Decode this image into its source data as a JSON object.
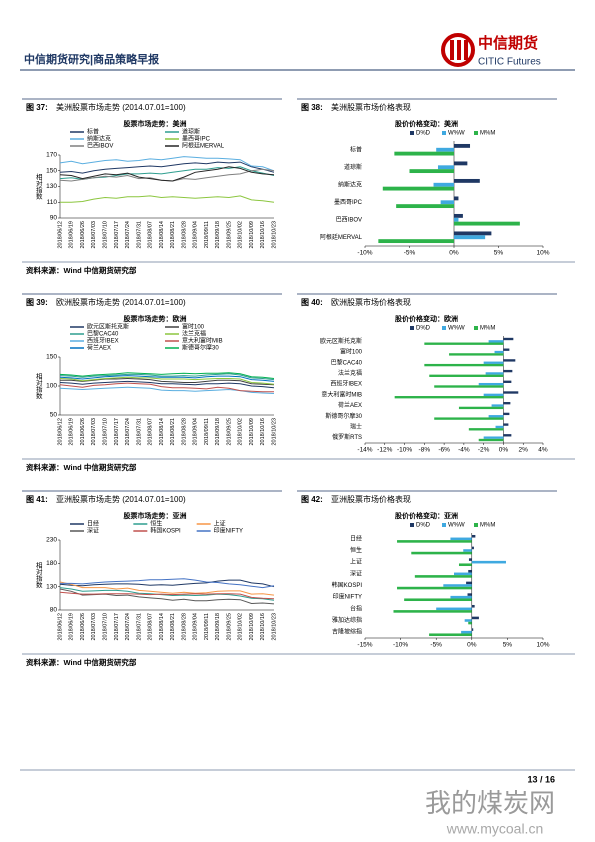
{
  "header": {
    "title": "中信期货研究|商品策略早报",
    "logo_cn": "中信期货",
    "logo_en": "CITIC Futures"
  },
  "figures": [
    {
      "label": "图 37:",
      "caption": "美洲股票市场走势 (2014.07.01=100)"
    },
    {
      "label": "图 38:",
      "caption": "美洲股票市场价格表现"
    },
    {
      "label": "图 39:",
      "caption": "欧洲股票市场走势 (2014.07.01=100)"
    },
    {
      "label": "图 40:",
      "caption": "欧洲股票市场价格表现"
    },
    {
      "label": "图 41:",
      "caption": "亚洲股票市场走势 (2014.07.01=100)"
    },
    {
      "label": "图 42:",
      "caption": "亚洲股票市场价格表现"
    }
  ],
  "sources": [
    "资料来源：Wind 中信期货研究部",
    "资料来源：Wind 中信期货研究部",
    "资料来源：Wind 中信期货研究部"
  ],
  "chart_data": [
    {
      "type": "line",
      "title": "股票市场走势：美洲",
      "ylabel": "相对指数",
      "categories": [
        "2018/06/12",
        "2018/06/19",
        "2018/06/26",
        "2018/07/03",
        "2018/07/10",
        "2018/07/17",
        "2018/07/24",
        "2018/07/31",
        "2018/08/07",
        "2018/08/14",
        "2018/08/21",
        "2018/08/28",
        "2018/09/04",
        "2018/09/11",
        "2018/09/18",
        "2018/09/25",
        "2018/10/02",
        "2018/10/09",
        "2018/10/16",
        "2018/10/23"
      ],
      "ylim": [
        90,
        170
      ],
      "yticks": [
        90,
        110,
        130,
        150,
        170
      ],
      "series": [
        {
          "name": "标普",
          "color": "#1f3864",
          "values": [
            148,
            149,
            147,
            150,
            152,
            153,
            154,
            155,
            156,
            155,
            157,
            159,
            160,
            159,
            161,
            160,
            161,
            155,
            152,
            148
          ]
        },
        {
          "name": "道琼斯",
          "color": "#2e9e8f",
          "values": [
            140,
            141,
            139,
            141,
            142,
            144,
            146,
            146,
            147,
            146,
            148,
            150,
            152,
            152,
            154,
            153,
            155,
            150,
            147,
            144
          ]
        },
        {
          "name": "纳斯达克",
          "color": "#5aaee0",
          "values": [
            160,
            162,
            159,
            161,
            163,
            164,
            162,
            163,
            165,
            164,
            166,
            168,
            167,
            166,
            166,
            165,
            164,
            156,
            155,
            150
          ]
        },
        {
          "name": "墨西哥IPC",
          "color": "#8cc63f",
          "values": [
            110,
            110,
            111,
            114,
            116,
            115,
            117,
            117,
            118,
            116,
            117,
            116,
            115,
            116,
            117,
            116,
            118,
            113,
            112,
            110
          ]
        },
        {
          "name": "巴西IBOV",
          "color": "#7f7f7f",
          "values": [
            138,
            137,
            139,
            141,
            143,
            142,
            144,
            140,
            141,
            138,
            137,
            140,
            139,
            141,
            143,
            145,
            146,
            150,
            152,
            150
          ]
        },
        {
          "name": "阿根廷MERVAL",
          "color": "#262626",
          "values": [
            145,
            144,
            140,
            143,
            146,
            145,
            147,
            142,
            140,
            138,
            137,
            142,
            148,
            150,
            152,
            155,
            153,
            148,
            146,
            145
          ]
        }
      ]
    },
    {
      "type": "hbar",
      "title": "股价价格变动：美洲",
      "categories": [
        "标普",
        "道琼斯",
        "纳斯达克",
        "墨西哥IPC",
        "巴西IBOV",
        "阿根廷MERVAL"
      ],
      "xlim": [
        -10,
        10
      ],
      "xticks": [
        {
          "value": -10,
          "label": "-10%"
        },
        {
          "value": -5,
          "label": "-5%"
        },
        {
          "value": 0,
          "label": "0%"
        },
        {
          "value": 5,
          "label": "5%"
        },
        {
          "value": 10,
          "label": "10%"
        }
      ],
      "series": [
        {
          "name": "D%D",
          "color": "#1f3864",
          "values": [
            1.8,
            1.5,
            2.9,
            0.5,
            1.0,
            4.2
          ]
        },
        {
          "name": "W%W",
          "color": "#3fa9e0",
          "values": [
            -2.0,
            -1.8,
            -2.3,
            -1.5,
            0.5,
            3.5
          ]
        },
        {
          "name": "M%M",
          "color": "#2db34a",
          "values": [
            -6.7,
            -5.0,
            -8.0,
            -6.5,
            7.4,
            -8.5
          ]
        }
      ]
    },
    {
      "type": "line",
      "title": "股票市场走势：欧洲",
      "ylabel": "相对指数",
      "categories": [
        "2018/06/12",
        "2018/06/19",
        "2018/06/26",
        "2018/07/03",
        "2018/07/10",
        "2018/07/17",
        "2018/07/24",
        "2018/07/31",
        "2018/08/07",
        "2018/08/14",
        "2018/08/21",
        "2018/08/28",
        "2018/09/04",
        "2018/09/11",
        "2018/09/18",
        "2018/09/25",
        "2018/10/02",
        "2018/10/09",
        "2018/10/16",
        "2018/10/23"
      ],
      "ylim": [
        50,
        150
      ],
      "yticks": [
        50,
        100,
        150
      ],
      "series": [
        {
          "name": "欧元区斯托克斯",
          "color": "#1f3864",
          "values": [
            106,
            105,
            103,
            105,
            106,
            107,
            108,
            107,
            106,
            104,
            104,
            103,
            102,
            104,
            104,
            105,
            104,
            100,
            99,
            97
          ]
        },
        {
          "name": "富时100",
          "color": "#404040",
          "values": [
            110,
            110,
            108,
            110,
            112,
            112,
            113,
            112,
            111,
            108,
            107,
            106,
            106,
            108,
            110,
            110,
            109,
            104,
            103,
            102
          ]
        },
        {
          "name": "巴黎CAC40",
          "color": "#2e9e8f",
          "values": [
            118,
            117,
            115,
            117,
            118,
            119,
            120,
            120,
            119,
            117,
            117,
            118,
            117,
            119,
            120,
            121,
            119,
            114,
            113,
            111
          ]
        },
        {
          "name": "法兰克福",
          "color": "#8cc63f",
          "values": [
            113,
            112,
            109,
            111,
            113,
            114,
            115,
            114,
            114,
            112,
            112,
            112,
            111,
            112,
            113,
            113,
            112,
            106,
            105,
            103
          ]
        },
        {
          "name": "西班牙IBEX",
          "color": "#5aaee0",
          "values": [
            96,
            95,
            94,
            95,
            96,
            97,
            98,
            97,
            96,
            93,
            92,
            92,
            91,
            92,
            93,
            94,
            92,
            89,
            88,
            87
          ]
        },
        {
          "name": "意大利富时MIB",
          "color": "#c0504d",
          "values": [
            102,
            100,
            98,
            101,
            102,
            104,
            105,
            104,
            103,
            99,
            97,
            97,
            96,
            95,
            98,
            96,
            92,
            91,
            90,
            90
          ]
        },
        {
          "name": "荷兰AEX",
          "color": "#0070c0",
          "values": [
            115,
            114,
            112,
            114,
            116,
            117,
            118,
            117,
            116,
            115,
            115,
            115,
            114,
            116,
            117,
            117,
            116,
            111,
            110,
            108
          ]
        },
        {
          "name": "斯德哥尔摩30",
          "color": "#00b050",
          "values": [
            120,
            119,
            117,
            119,
            120,
            121,
            123,
            122,
            121,
            120,
            121,
            122,
            121,
            122,
            122,
            123,
            121,
            116,
            115,
            113
          ]
        }
      ]
    },
    {
      "type": "hbar",
      "title": "股价价格变动：欧洲",
      "categories": [
        "欧元区斯托克斯",
        "富时100",
        "巴黎CAC40",
        "法兰克福",
        "西班牙IBEX",
        "意大利富时MIB",
        "荷兰AEX",
        "斯德哥尔摩30",
        "瑞士",
        "俄罗斯RTS"
      ],
      "xlim": [
        -14,
        4
      ],
      "xticks": [
        {
          "value": -14,
          "label": "-14%"
        },
        {
          "value": -12,
          "label": "-12%"
        },
        {
          "value": -10,
          "label": "-10%"
        },
        {
          "value": -8,
          "label": "-8%"
        },
        {
          "value": -6,
          "label": "-6%"
        },
        {
          "value": -4,
          "label": "-4%"
        },
        {
          "value": -2,
          "label": "-2%"
        },
        {
          "value": 0,
          "label": "0%"
        },
        {
          "value": 2,
          "label": "2%"
        },
        {
          "value": 4,
          "label": "4%"
        }
      ],
      "series": [
        {
          "name": "D%D",
          "color": "#1f3864",
          "values": [
            1.0,
            0.6,
            1.2,
            0.9,
            0.8,
            1.5,
            0.7,
            0.6,
            0.5,
            0.8
          ]
        },
        {
          "name": "W%W",
          "color": "#3fa9e0",
          "values": [
            -1.5,
            -0.9,
            -2.0,
            -1.8,
            -2.5,
            -2.0,
            -1.2,
            -1.5,
            -0.8,
            -2.0
          ]
        },
        {
          "name": "M%M",
          "color": "#2db34a",
          "values": [
            -8,
            -5.5,
            -8,
            -7.5,
            -7,
            -11,
            -4.5,
            -7,
            -3.5,
            -2.5
          ]
        }
      ]
    },
    {
      "type": "line",
      "title": "股票市场走势：亚洲",
      "ylabel": "相对指数",
      "categories": [
        "2018/06/12",
        "2018/06/19",
        "2018/06/26",
        "2018/07/03",
        "2018/07/10",
        "2018/07/17",
        "2018/07/24",
        "2018/07/31",
        "2018/08/07",
        "2018/08/14",
        "2018/08/21",
        "2018/08/28",
        "2018/09/04",
        "2018/09/11",
        "2018/09/18",
        "2018/09/25",
        "2018/10/02",
        "2018/10/09",
        "2018/10/16",
        "2018/10/23"
      ],
      "ylim": [
        80,
        230
      ],
      "yticks": [
        80,
        130,
        180,
        230
      ],
      "series": [
        {
          "name": "日经",
          "color": "#1f3864",
          "values": [
            135,
            133,
            132,
            134,
            135,
            136,
            136,
            135,
            133,
            134,
            133,
            135,
            137,
            138,
            142,
            144,
            144,
            138,
            136,
            130
          ]
        },
        {
          "name": "恒生",
          "color": "#2e9e8f",
          "values": [
            128,
            125,
            120,
            121,
            122,
            122,
            120,
            116,
            115,
            113,
            111,
            112,
            111,
            112,
            114,
            113,
            110,
            105,
            104,
            101
          ]
        },
        {
          "name": "上证",
          "color": "#f79646",
          "values": [
            140,
            135,
            128,
            128,
            128,
            125,
            127,
            122,
            120,
            118,
            116,
            118,
            116,
            117,
            120,
            121,
            121,
            114,
            115,
            112
          ]
        },
        {
          "name": "深证",
          "color": "#595959",
          "values": [
            125,
            120,
            112,
            113,
            114,
            111,
            112,
            108,
            106,
            104,
            101,
            103,
            100,
            100,
            102,
            103,
            102,
            94,
            95,
            93
          ]
        },
        {
          "name": "韩国KOSPI",
          "color": "#c0504d",
          "values": [
            118,
            116,
            114,
            114,
            115,
            115,
            115,
            114,
            113,
            114,
            113,
            114,
            115,
            114,
            115,
            115,
            114,
            107,
            105,
            104
          ]
        },
        {
          "name": "印度NIFTY",
          "color": "#4472c4",
          "values": [
            137,
            137,
            136,
            138,
            140,
            141,
            142,
            143,
            145,
            145,
            146,
            147,
            144,
            140,
            139,
            136,
            134,
            131,
            128,
            132
          ]
        }
      ]
    },
    {
      "type": "hbar",
      "title": "股价价格变动：亚洲",
      "categories": [
        "日经",
        "恒生",
        "上证",
        "深证",
        "韩国KOSPI",
        "印度NIFTY",
        "台指",
        "雅加达综指",
        "吉隆坡综指"
      ],
      "xlim": [
        -15,
        10
      ],
      "xticks": [
        {
          "value": -15,
          "label": "-15%"
        },
        {
          "value": -10,
          "label": "-10%"
        },
        {
          "value": -5,
          "label": "-5%"
        },
        {
          "value": 0,
          "label": "0%"
        },
        {
          "value": 5,
          "label": "5%"
        },
        {
          "value": 10,
          "label": "10%"
        }
      ],
      "series": [
        {
          "name": "D%D",
          "color": "#1f3864",
          "values": [
            0.5,
            0.3,
            -0.4,
            -0.5,
            -0.8,
            -0.6,
            0.4,
            1.0,
            0.2
          ]
        },
        {
          "name": "W%W",
          "color": "#3fa9e0",
          "values": [
            -3,
            -1.2,
            4.8,
            -2.5,
            -4.0,
            -3.0,
            -5.0,
            -1.0,
            -1.5
          ]
        },
        {
          "name": "M%M",
          "color": "#2db34a",
          "values": [
            -10.5,
            -8.5,
            -1.8,
            -8.0,
            -10.5,
            -9.5,
            -11.0,
            -0.5,
            -6.0
          ]
        }
      ]
    }
  ],
  "footer": {
    "page": "13 / 16",
    "watermark": "我的煤炭网",
    "watermark_url": "www.mycoal.cn"
  }
}
